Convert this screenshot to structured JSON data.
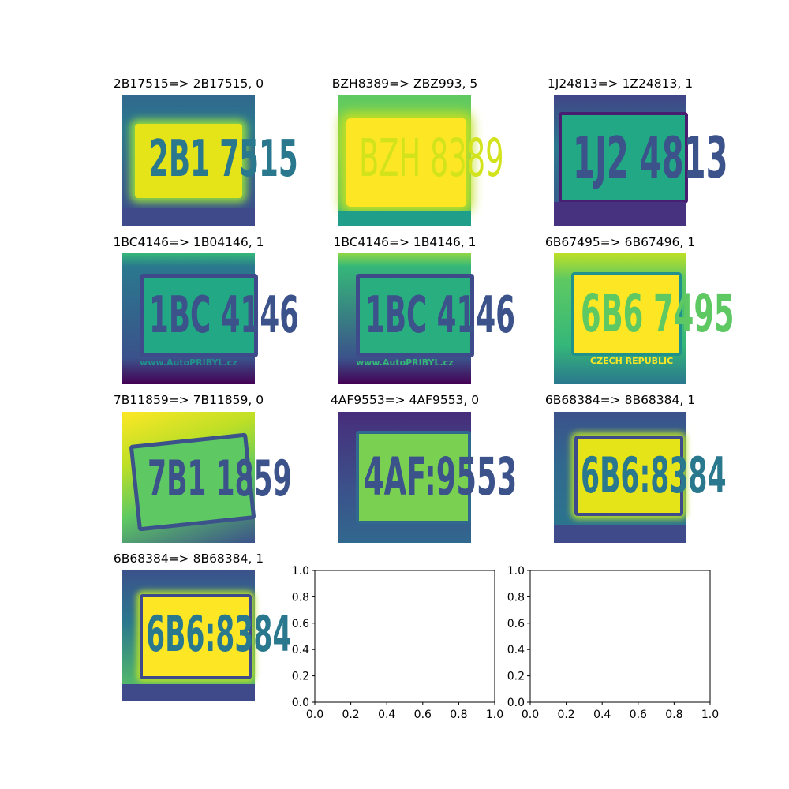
{
  "panels": [
    {
      "title": "2B17515=> 2B17515, 0",
      "plate_text": "2B1 7515",
      "sub_text": ""
    },
    {
      "title": "BZH8389=> ZBZ993, 5",
      "plate_text": "BZH 8389",
      "sub_text": ""
    },
    {
      "title": "1J24813=> 1Z24813, 1",
      "plate_text": "1J2 4813",
      "sub_text": ""
    },
    {
      "title": "1BC4146=> 1B04146, 1",
      "plate_text": "1BC 4146",
      "sub_text": "www.AutoPRIBYL.cz"
    },
    {
      "title": "1BC4146=> 1B4146, 1",
      "plate_text": "1BC 4146",
      "sub_text": "www.AutoPRIBYL.cz"
    },
    {
      "title": "6B67495=> 6B67496, 1",
      "plate_text": "6B6 7495",
      "sub_text": "CZECH REPUBLIC"
    },
    {
      "title": "7B11859=> 7B11859, 0",
      "plate_text": "7B1 1859",
      "sub_text": ""
    },
    {
      "title": "4AF9553=> 4AF9553, 0",
      "plate_text": "4AF:9553",
      "sub_text": ""
    },
    {
      "title": "6B68384=> 8B68384, 1",
      "plate_text": "6B6:8384",
      "sub_text": ""
    },
    {
      "title": "6B68384=> 8B68384, 1",
      "plate_text": "6B6:8384",
      "sub_text": ""
    }
  ],
  "colors": {
    "viridis_dark": "#440154",
    "viridis_blue": "#3b528b",
    "viridis_teal": "#21918c",
    "viridis_green": "#5ec962",
    "viridis_yellow": "#fde725"
  },
  "chart_data": [
    {
      "type": "scatter",
      "title": "",
      "xlim": [
        0.0,
        1.0
      ],
      "ylim": [
        0.0,
        1.0
      ],
      "xticks": [
        "0.0",
        "0.2",
        "0.4",
        "0.6",
        "0.8",
        "1.0"
      ],
      "yticks": [
        "0.0",
        "0.2",
        "0.4",
        "0.6",
        "0.8",
        "1.0"
      ],
      "series": []
    },
    {
      "type": "scatter",
      "title": "",
      "xlim": [
        0.0,
        1.0
      ],
      "ylim": [
        0.0,
        1.0
      ],
      "xticks": [
        "0.0",
        "0.2",
        "0.4",
        "0.6",
        "0.8",
        "1.0"
      ],
      "yticks": [
        "0.0",
        "0.2",
        "0.4",
        "0.6",
        "0.8",
        "1.0"
      ],
      "series": []
    }
  ]
}
